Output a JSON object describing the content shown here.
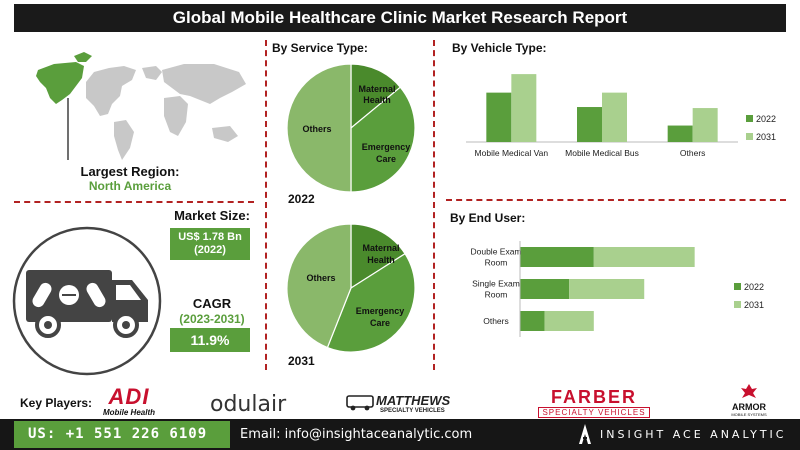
{
  "title": "Global Mobile Healthcare Clinic Market Research Report",
  "region": {
    "label": "Largest Region:",
    "value": "North America"
  },
  "market_size": {
    "label": "Market Size:",
    "value": "US$ 1.78 Bn",
    "year": "(2022)"
  },
  "cagr": {
    "label": "CAGR",
    "period": "(2023-2031)",
    "value": "11.9%"
  },
  "key_players": {
    "label": "Key Players:",
    "logos": [
      {
        "name": "ADI",
        "sub": "Mobile Health"
      },
      {
        "name": "odulair",
        "sub": ""
      },
      {
        "name": "MATTHEWS",
        "sub": "SPECIALTY VEHICLES"
      },
      {
        "name": "FARBER",
        "sub": "SPECIALTY VEHICLES"
      },
      {
        "name": "ARMOR",
        "sub": "MOBILE SYSTEMS"
      }
    ]
  },
  "footer": {
    "phone": "US: +1 551 226 6109",
    "email": "Email: info@insightaceanalytic.com",
    "brand": "INSIGHT ACE ANALYTIC"
  },
  "colors": {
    "dark_green": "#5a9e3c",
    "light_green": "#a9d08e",
    "mid_green": "#8ab86a",
    "darkest_green": "#4a8a2c",
    "accent_red": "#b22222"
  },
  "chart_data": [
    {
      "type": "pie",
      "title": "By Service Type:",
      "caption": "2022",
      "labels": [
        "Maternal",
        "Health",
        "Emergency",
        "Care",
        "Others"
      ],
      "slices": [
        {
          "name": "Maternal Health",
          "value": 14,
          "color": "#4a8a2c"
        },
        {
          "name": "Emergency Care",
          "value": 36,
          "color": "#5a9e3c"
        },
        {
          "name": "Others",
          "value": 50,
          "color": "#8ab86a"
        }
      ]
    },
    {
      "type": "pie",
      "caption": "2031",
      "labels": [
        "Maternal",
        "Health",
        "Emergency",
        "Care",
        "Others"
      ],
      "slices": [
        {
          "name": "Maternal Health",
          "value": 16,
          "color": "#4a8a2c"
        },
        {
          "name": "Emergency Care",
          "value": 40,
          "color": "#5a9e3c"
        },
        {
          "name": "Others",
          "value": 44,
          "color": "#8ab86a"
        }
      ]
    },
    {
      "type": "bar",
      "title": "By Vehicle Type:",
      "categories": [
        "Mobile Medical Van",
        "Mobile Medical Bus",
        "Others"
      ],
      "series": [
        {
          "name": "2022",
          "values": [
            48,
            34,
            16
          ],
          "color": "#5a9e3c"
        },
        {
          "name": "2031",
          "values": [
            66,
            48,
            33
          ],
          "color": "#a9d08e"
        }
      ],
      "ylim": [
        0,
        70
      ],
      "legend": "right"
    },
    {
      "type": "bar",
      "orientation": "horizontal",
      "stacked": true,
      "title": "By End User:",
      "categories": [
        "Double Exam Room",
        "Single Exam Room",
        "Others"
      ],
      "category_lines": [
        [
          "Double Exam",
          "Room"
        ],
        [
          "Single Exam",
          "Room"
        ],
        [
          "Others"
        ]
      ],
      "series": [
        {
          "name": "2022",
          "values": [
            60,
            40,
            20
          ],
          "color": "#5a9e3c"
        },
        {
          "name": "2031",
          "values": [
            82,
            61,
            40
          ],
          "color": "#a9d08e"
        }
      ],
      "xlim": [
        0,
        200
      ],
      "legend": "right"
    }
  ]
}
